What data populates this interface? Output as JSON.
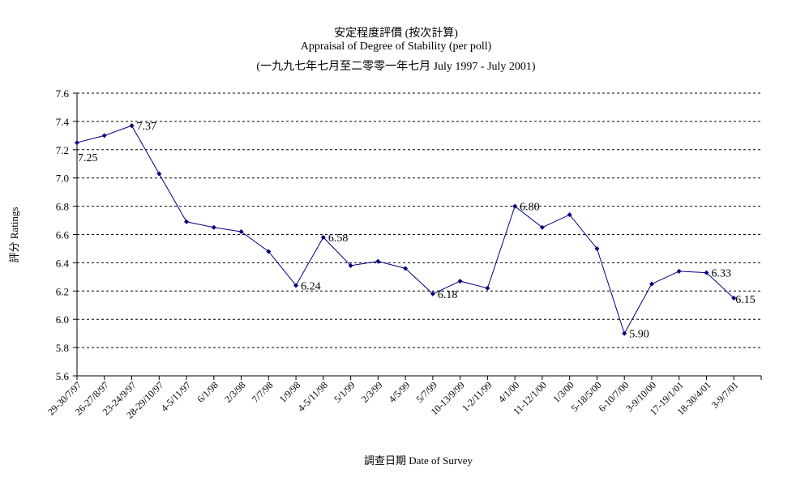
{
  "chart_data": {
    "type": "line",
    "title": "安定程度評價 (按次計算)",
    "subtitle": "Appraisal of Degree of Stability (per poll)",
    "subtitle2": "(一九九七年七月至二零零一年七月 July 1997 - July 2001)",
    "xlabel": "調查日期 Date of Survey",
    "ylabel": "評分 Ratings",
    "ylim": [
      5.6,
      7.6
    ],
    "ytick_step": 0.2,
    "yticks": [
      "5.6",
      "5.8",
      "6.0",
      "6.2",
      "6.4",
      "6.6",
      "6.8",
      "7.0",
      "7.2",
      "7.4",
      "7.6"
    ],
    "grid": "horizontal-dashed",
    "line_color": "#000080",
    "categories": [
      "29-30/7/97",
      "26-27/8/97",
      "23-24/9/97",
      "28-29/10/97",
      "4-5/11/97",
      "6/1/98",
      "2/3/98",
      "7/7/98",
      "1/9/98",
      "4-5/11/98",
      "5/1/99",
      "2/3/99",
      "4/5/99",
      "5/7/99",
      "10-13/9/99",
      "1-2/11/99",
      "4/1/00",
      "11-12/1/00",
      "1/3/00",
      "5-18/5/00",
      "6-10/7/00",
      "3-9/10/00",
      "17-19/1/01",
      "18-30/4/01",
      "3-9/7/01"
    ],
    "values": [
      7.25,
      7.3,
      7.37,
      7.03,
      6.69,
      6.65,
      6.62,
      6.48,
      6.24,
      6.58,
      6.38,
      6.41,
      6.36,
      6.18,
      6.27,
      6.22,
      6.8,
      6.65,
      6.74,
      6.5,
      5.9,
      6.25,
      6.34,
      6.33,
      6.15
    ],
    "data_labels": [
      {
        "index": 0,
        "text": "7.25"
      },
      {
        "index": 2,
        "text": "7.37"
      },
      {
        "index": 8,
        "text": "6.24"
      },
      {
        "index": 9,
        "text": "6.58"
      },
      {
        "index": 13,
        "text": "6.18"
      },
      {
        "index": 16,
        "text": "6.80"
      },
      {
        "index": 20,
        "text": "5.90"
      },
      {
        "index": 23,
        "text": "6.33"
      },
      {
        "index": 24,
        "text": "6.15"
      }
    ]
  }
}
